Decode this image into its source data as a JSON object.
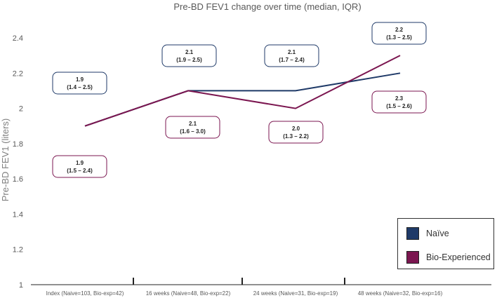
{
  "chart_data": {
    "type": "line",
    "title": "Pre-BD FEV1 change over time (median, IQR)",
    "xlabel": "",
    "ylabel": "Pre-BD FEV1 (liters)",
    "ylim": [
      1,
      2.4
    ],
    "yticks": [
      "1",
      "1.2",
      "1.4",
      "1.6",
      "1.8",
      "2",
      "2.2",
      "2.4"
    ],
    "categories": [
      "Index (Naive=103, Bio-exp=42)",
      "16 weeks (Naive=48, Bio-exp=22)",
      "24 weeks (Naive=31, Bio-exp=19)",
      "48 weeks (Naive=32, Bio-exp=16)"
    ],
    "series": [
      {
        "name": "Naïve",
        "color": "#1f3a68",
        "values": [
          1.9,
          2.1,
          2.1,
          2.2
        ],
        "labels": [
          {
            "median": "1.9",
            "iqr": "(1.4 – 2.5)"
          },
          {
            "median": "2.1",
            "iqr": "(1.9 – 2.5)"
          },
          {
            "median": "2.1",
            "iqr": "(1.7 – 2.4)"
          },
          {
            "median": "2.2",
            "iqr": "(1.3 – 2.5)"
          }
        ]
      },
      {
        "name": "Bio-Experienced",
        "color": "#7b1650",
        "values": [
          1.9,
          2.1,
          2.0,
          2.3
        ],
        "labels": [
          {
            "median": "1.9",
            "iqr": "(1.5 – 2.4)"
          },
          {
            "median": "2.1",
            "iqr": "(1.6 – 3.0)"
          },
          {
            "median": "2.0",
            "iqr": "(1.3 – 2.2)"
          },
          {
            "median": "2.3",
            "iqr": "(1.5 – 2.6)"
          }
        ]
      }
    ],
    "legend_position": "bottom-right"
  }
}
